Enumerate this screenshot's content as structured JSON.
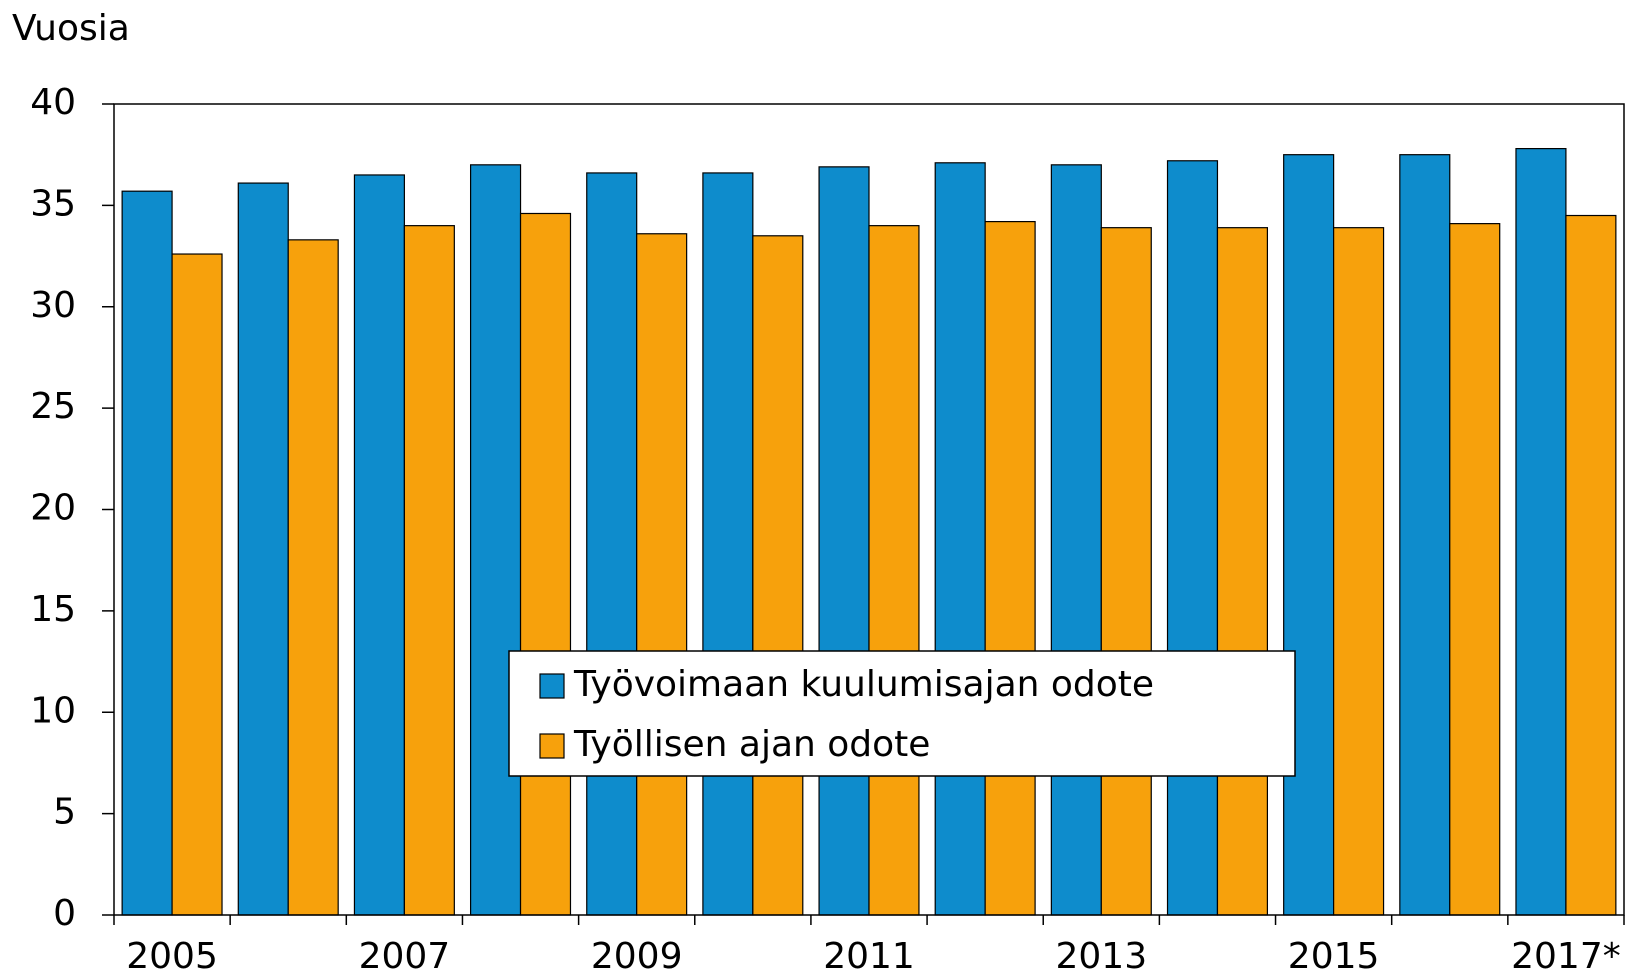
{
  "chart_data": {
    "type": "bar",
    "y_label": "Vuosia",
    "categories": [
      "2005",
      null,
      "2007",
      null,
      "2009",
      null,
      "2011",
      null,
      "2013",
      null,
      "2015",
      null,
      "2017*"
    ],
    "series": [
      {
        "name": "Työvoimaan kuulumisajan odote",
        "color": "#0e8ccc",
        "values": [
          35.7,
          36.1,
          36.5,
          37.0,
          36.6,
          36.6,
          36.9,
          37.1,
          37.0,
          37.2,
          37.5,
          37.5,
          37.8
        ]
      },
      {
        "name": "Työllisen ajan odote",
        "color": "#f7a10c",
        "values": [
          32.6,
          33.3,
          34.0,
          34.6,
          33.6,
          33.5,
          34.0,
          34.2,
          33.9,
          33.9,
          33.9,
          34.1,
          34.5
        ]
      }
    ],
    "ylim": [
      0,
      40
    ],
    "yticks": [
      0,
      5,
      10,
      15,
      20,
      25,
      30,
      35,
      40
    ],
    "grid": false
  }
}
